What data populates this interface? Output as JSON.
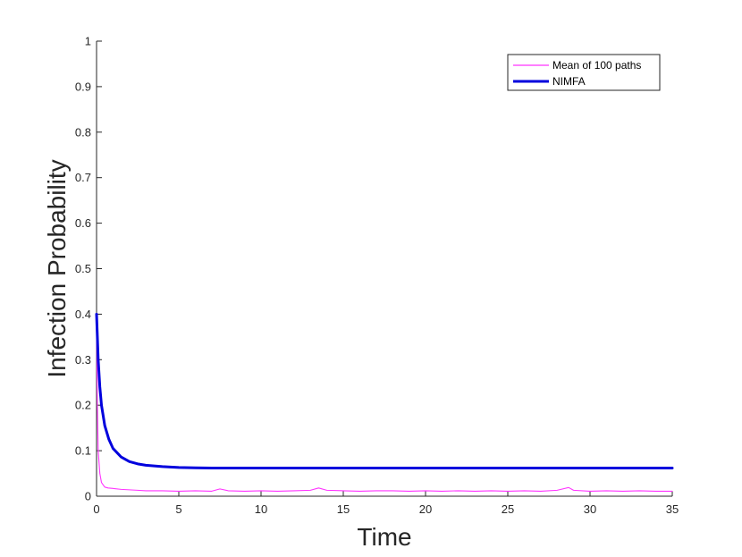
{
  "chart_data": {
    "type": "line",
    "xlabel": "Time",
    "ylabel": "Infection Probability",
    "xlim": [
      0,
      35
    ],
    "ylim": [
      0,
      1
    ],
    "xticks": [
      0,
      5,
      10,
      15,
      20,
      25,
      30,
      35
    ],
    "yticks": [
      0,
      0.1,
      0.2,
      0.3,
      0.4,
      0.5,
      0.6,
      0.7,
      0.8,
      0.9,
      1
    ],
    "grid": false,
    "legend_position": "top-right",
    "series": [
      {
        "name": "Mean of 100 paths",
        "color": "#ff33ff",
        "style": "thin-noisy",
        "x": [
          0,
          0.05,
          0.1,
          0.2,
          0.3,
          0.4,
          0.5,
          0.7,
          1,
          1.5,
          2,
          2.5,
          3,
          4,
          5,
          6,
          7,
          7.5,
          8,
          9,
          10,
          11,
          12,
          13,
          13.5,
          14,
          15,
          16,
          17,
          18,
          19,
          20,
          21,
          22,
          23,
          24,
          25,
          26,
          27,
          28,
          28.7,
          29,
          30,
          31,
          32,
          33,
          34,
          35
        ],
        "y": [
          0.38,
          0.2,
          0.1,
          0.05,
          0.03,
          0.025,
          0.02,
          0.018,
          0.017,
          0.015,
          0.014,
          0.013,
          0.012,
          0.012,
          0.011,
          0.012,
          0.011,
          0.016,
          0.012,
          0.011,
          0.012,
          0.011,
          0.012,
          0.013,
          0.018,
          0.013,
          0.012,
          0.011,
          0.012,
          0.012,
          0.011,
          0.012,
          0.011,
          0.012,
          0.011,
          0.012,
          0.011,
          0.012,
          0.011,
          0.013,
          0.019,
          0.013,
          0.011,
          0.012,
          0.011,
          0.012,
          0.011,
          0.011
        ]
      },
      {
        "name": "NIMFA",
        "color": "#0000dd",
        "style": "thick-smooth",
        "x": [
          0,
          0.1,
          0.2,
          0.3,
          0.5,
          0.75,
          1,
          1.5,
          2,
          2.5,
          3,
          4,
          5,
          6,
          7,
          8,
          10,
          15,
          20,
          25,
          30,
          35
        ],
        "y": [
          0.4,
          0.3,
          0.24,
          0.2,
          0.155,
          0.125,
          0.105,
          0.086,
          0.076,
          0.071,
          0.068,
          0.065,
          0.063,
          0.0625,
          0.062,
          0.062,
          0.062,
          0.062,
          0.062,
          0.062,
          0.062,
          0.062
        ]
      }
    ]
  }
}
